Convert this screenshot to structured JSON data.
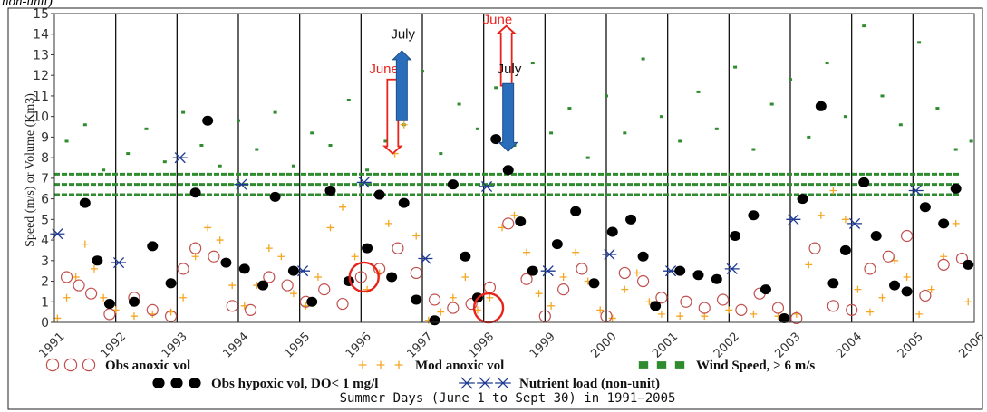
{
  "header_fragment": "non-unit)",
  "chart_data": {
    "type": "scatter",
    "ylabel": "Speed (m/s) or Volume (Km3)",
    "xlabel": "Summer Days (June 1 to Sept 30) in 1991−2005",
    "ylim": [
      0,
      15
    ],
    "xlim": [
      1991,
      2006
    ],
    "yticks": [
      0,
      1,
      2,
      3,
      4,
      5,
      6,
      7,
      8,
      9,
      10,
      11,
      12,
      13,
      14,
      15
    ],
    "xticks": [
      "1991",
      "1992",
      "1993",
      "1994",
      "1995",
      "1996",
      "1997",
      "1998",
      "1999",
      "2000",
      "2001",
      "2002",
      "2003",
      "2004",
      "2005",
      "2006"
    ],
    "grid": "vertical lines at each year",
    "legend_placement": "below plot",
    "series": [
      {
        "name": "Obs anoxic vol",
        "marker": "open-circle",
        "color": "#c0504d",
        "x": [
          1991.2,
          1991.4,
          1991.6,
          1991.9,
          1992.3,
          1992.6,
          1992.9,
          1993.1,
          1993.3,
          1993.6,
          1993.9,
          1994.2,
          1994.5,
          1994.8,
          1995.1,
          1995.4,
          1995.7,
          1996.0,
          1996.3,
          1996.6,
          1996.9,
          1997.2,
          1997.5,
          1997.8,
          1998.1,
          1998.4,
          1998.7,
          1999.0,
          1999.3,
          1999.6,
          2000.0,
          2000.3,
          2000.6,
          2000.9,
          2001.3,
          2001.6,
          2001.9,
          2002.2,
          2002.5,
          2002.8,
          2003.1,
          2003.4,
          2003.7,
          2004.0,
          2004.3,
          2004.6,
          2004.9,
          2005.2,
          2005.5,
          2005.8
        ],
        "y": [
          2.2,
          1.8,
          1.4,
          0.4,
          1.2,
          0.6,
          0.3,
          2.6,
          3.6,
          3.2,
          0.8,
          0.6,
          2.2,
          1.8,
          1.0,
          1.6,
          0.9,
          2.2,
          2.6,
          3.6,
          2.4,
          1.1,
          0.7,
          0.9,
          1.7,
          4.8,
          2.1,
          0.3,
          1.6,
          2.6,
          0.3,
          2.4,
          2.0,
          1.2,
          1.0,
          0.7,
          1.1,
          0.6,
          1.4,
          0.7,
          0.2,
          3.6,
          0.8,
          0.6,
          2.6,
          3.2,
          4.2,
          1.3,
          2.8,
          3.1
        ]
      },
      {
        "name": "Mod anoxic vol",
        "marker": "plus",
        "color": "#f5a623",
        "x": [
          1991.05,
          1991.2,
          1991.35,
          1991.5,
          1991.65,
          1991.8,
          1992.0,
          1992.3,
          1992.6,
          1992.9,
          1993.1,
          1993.3,
          1993.5,
          1993.7,
          1993.9,
          1994.1,
          1994.3,
          1994.5,
          1994.7,
          1994.9,
          1995.1,
          1995.3,
          1995.5,
          1995.7,
          1995.9,
          1996.1,
          1996.3,
          1996.45,
          1996.55,
          1996.7,
          1996.9,
          1997.1,
          1997.3,
          1997.5,
          1997.7,
          1997.9,
          1998.1,
          1998.3,
          1998.5,
          1998.7,
          1998.9,
          1999.1,
          1999.3,
          1999.5,
          1999.7,
          1999.9,
          2000.1,
          2000.3,
          2000.5,
          2000.7,
          2000.9,
          2001.2,
          2001.6,
          2002.0,
          2002.4,
          2002.8,
          2003.1,
          2003.3,
          2003.5,
          2003.7,
          2003.9,
          2004.1,
          2004.3,
          2004.5,
          2004.7,
          2004.9,
          2005.1,
          2005.3,
          2005.5,
          2005.7,
          2005.9
        ],
        "y": [
          0.2,
          1.2,
          2.2,
          3.8,
          2.6,
          1.2,
          0.6,
          0.3,
          0.4,
          0.5,
          1.2,
          3.2,
          4.6,
          4.0,
          1.8,
          0.8,
          1.8,
          3.6,
          3.2,
          1.4,
          0.8,
          2.2,
          4.6,
          5.6,
          3.2,
          1.6,
          2.4,
          4.8,
          8.2,
          9.6,
          4.2,
          0.1,
          0.5,
          1.2,
          2.2,
          0.6,
          1.2,
          4.6,
          5.2,
          3.4,
          1.4,
          0.8,
          2.2,
          3.4,
          2.0,
          0.6,
          0.2,
          1.6,
          2.4,
          1.0,
          0.4,
          0.3,
          0.3,
          0.6,
          0.4,
          0.3,
          0.4,
          2.8,
          5.2,
          6.4,
          5.0,
          1.6,
          0.5,
          1.2,
          3.0,
          2.2,
          0.4,
          1.6,
          3.2,
          4.8,
          1.0
        ]
      },
      {
        "name": "Wind Speed, > 6 m/s",
        "marker": "filled-dot",
        "color": "#2e8b2e",
        "x": [
          1991.2,
          1991.5,
          1991.8,
          1992.2,
          1992.5,
          1992.8,
          1993.1,
          1993.4,
          1993.7,
          1994.0,
          1994.3,
          1994.6,
          1994.9,
          1995.2,
          1995.5,
          1995.8,
          1996.1,
          1996.4,
          1996.7,
          1997.0,
          1997.3,
          1997.6,
          1997.9,
          1998.2,
          1998.5,
          1998.8,
          1999.1,
          1999.4,
          1999.7,
          2000.0,
          2000.3,
          2000.6,
          2000.9,
          2001.2,
          2001.5,
          2001.8,
          2002.1,
          2002.4,
          2002.7,
          2003.0,
          2003.3,
          2003.6,
          2003.9,
          2004.2,
          2004.5,
          2004.8,
          2005.1,
          2005.4,
          2005.7,
          2005.95
        ],
        "y": [
          8.8,
          9.6,
          7.4,
          8.2,
          9.4,
          7.8,
          10.2,
          8.6,
          7.6,
          9.8,
          8.4,
          10.2,
          7.6,
          9.2,
          8.6,
          10.8,
          7.4,
          8.8,
          9.6,
          12.2,
          8.2,
          10.6,
          9.4,
          11.4,
          8.6,
          12.6,
          9.2,
          10.4,
          8.0,
          11.0,
          9.2,
          12.8,
          10.0,
          8.8,
          11.2,
          9.4,
          12.4,
          8.4,
          10.6,
          11.8,
          9.0,
          12.6,
          10.0,
          14.4,
          11.0,
          9.6,
          13.6,
          10.4,
          8.4,
          8.8
        ]
      },
      {
        "name": "Obs hypoxic vol, DO< 1 mg/l",
        "marker": "filled-circle",
        "color": "#000000",
        "x": [
          1991.5,
          1991.7,
          1991.9,
          1992.3,
          1992.6,
          1992.9,
          1993.3,
          1993.5,
          1993.8,
          1994.1,
          1994.4,
          1994.6,
          1994.9,
          1995.2,
          1995.5,
          1995.8,
          1996.1,
          1996.3,
          1996.5,
          1996.7,
          1996.9,
          1997.2,
          1997.5,
          1997.7,
          1997.9,
          1998.2,
          1998.4,
          1998.6,
          1998.8,
          1999.2,
          1999.5,
          1999.8,
          2000.1,
          2000.4,
          2000.6,
          2000.8,
          2001.2,
          2001.5,
          2001.8,
          2002.1,
          2002.4,
          2002.6,
          2002.9,
          2003.2,
          2003.5,
          2003.7,
          2003.9,
          2004.2,
          2004.4,
          2004.7,
          2004.9,
          2005.2,
          2005.5,
          2005.7,
          2005.9
        ],
        "y": [
          5.8,
          3.0,
          0.9,
          1.0,
          3.7,
          1.9,
          6.3,
          9.8,
          2.9,
          2.6,
          1.8,
          6.1,
          2.5,
          1.0,
          6.4,
          2.0,
          3.6,
          6.2,
          2.2,
          5.8,
          1.1,
          0.1,
          6.7,
          3.2,
          1.2,
          8.9,
          7.4,
          4.9,
          2.5,
          3.8,
          5.4,
          1.9,
          4.4,
          5.0,
          3.2,
          0.8,
          2.5,
          2.3,
          2.1,
          4.2,
          5.2,
          1.6,
          0.2,
          6.0,
          10.5,
          1.9,
          3.5,
          6.8,
          4.2,
          1.8,
          1.5,
          5.6,
          4.8,
          6.5,
          2.8
        ]
      },
      {
        "name": "Nutrient load (non-unit)",
        "marker": "star",
        "color": "#1f3a93",
        "x": [
          1991.05,
          1992.05,
          1993.05,
          1994.05,
          1995.05,
          1996.05,
          1997.05,
          1998.05,
          1999.05,
          2000.05,
          2001.05,
          2002.05,
          2003.05,
          2004.05,
          2005.05
        ],
        "y": [
          4.3,
          2.9,
          8.0,
          6.7,
          2.5,
          6.8,
          3.1,
          6.6,
          2.5,
          3.3,
          2.5,
          2.6,
          5.0,
          4.8,
          6.4
        ]
      }
    ],
    "annotations": [
      {
        "text": "June",
        "color": "#e8231c",
        "arrow": "down",
        "year": 1996,
        "label_y": 12.1
      },
      {
        "text": "July",
        "color": "#2a6ebb",
        "arrow": "up",
        "year": 1996,
        "label_y": 13.8
      },
      {
        "text": "June",
        "color": "#e8231c",
        "arrow": "up",
        "year": 1998,
        "label_y": 14.5
      },
      {
        "text": "July",
        "color": "#2a6ebb",
        "arrow": "down",
        "year": 1998,
        "label_y": 12.1
      }
    ],
    "highlight_circles": [
      {
        "x": 1996.05,
        "y": 2.2,
        "color": "#e8231c"
      },
      {
        "x": 1998.08,
        "y": 0.7,
        "color": "#e8231c"
      }
    ],
    "wind_threshold_lines": [
      6.2,
      6.7,
      7.2
    ]
  }
}
